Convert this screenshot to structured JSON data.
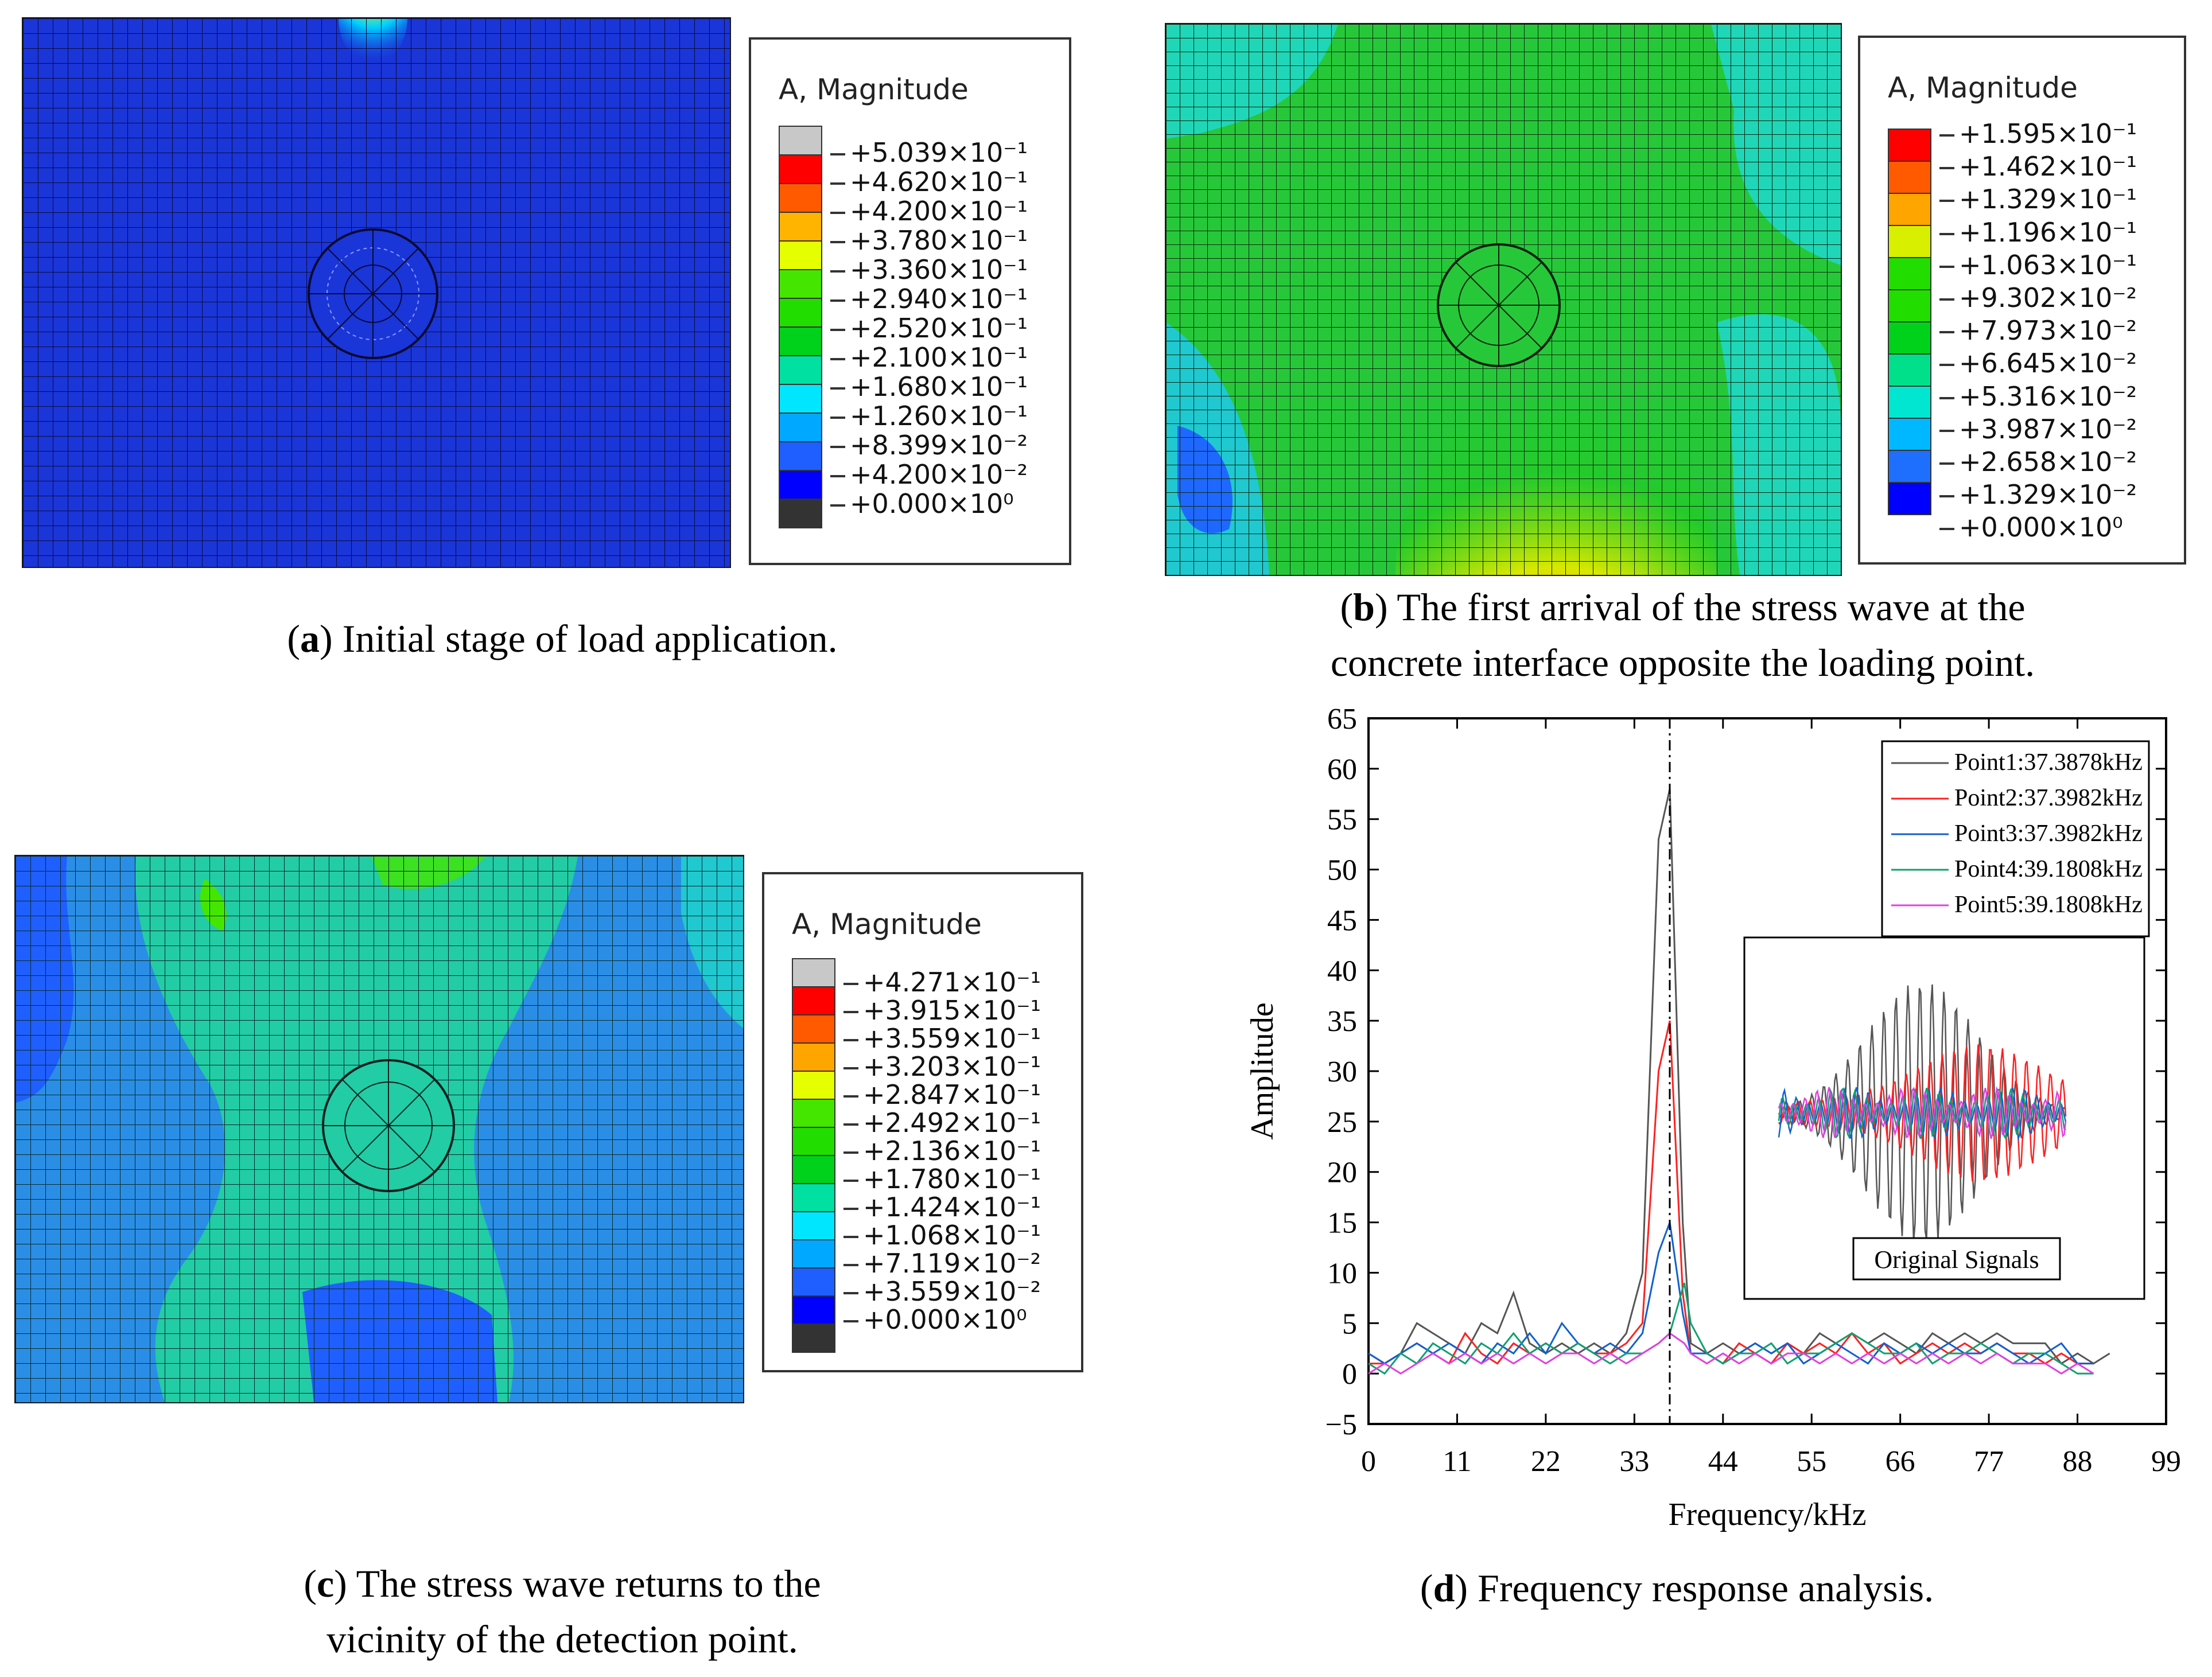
{
  "panels": {
    "a": {
      "legend_title": "A, Magnitude",
      "legend_values": [
        "+5.039×10⁻¹",
        "+4.620×10⁻¹",
        "+4.200×10⁻¹",
        "+3.780×10⁻¹",
        "+3.360×10⁻¹",
        "+2.940×10⁻¹",
        "+2.520×10⁻¹",
        "+2.100×10⁻¹",
        "+1.680×10⁻¹",
        "+1.260×10⁻¹",
        "+8.399×10⁻²",
        "+4.200×10⁻²",
        "+0.000×10⁰"
      ],
      "legend_colors": [
        "#c8c8c8",
        "#ff0000",
        "#ff5a00",
        "#ffb400",
        "#e6ff00",
        "#44e600",
        "#22dd00",
        "#00d11a",
        "#00e0a0",
        "#00e6ff",
        "#00a8ff",
        "#1f5fff",
        "#0000ff",
        "#333333"
      ],
      "caption_letter": "a",
      "caption_text": ") Initial stage of load application."
    },
    "b": {
      "legend_title": "A, Magnitude",
      "legend_values": [
        "+1.595×10⁻¹",
        "+1.462×10⁻¹",
        "+1.329×10⁻¹",
        "+1.196×10⁻¹",
        "+1.063×10⁻¹",
        "+9.302×10⁻²",
        "+7.973×10⁻²",
        "+6.645×10⁻²",
        "+5.316×10⁻²",
        "+3.987×10⁻²",
        "+2.658×10⁻²",
        "+1.329×10⁻²",
        "+0.000×10⁰"
      ],
      "legend_colors": [
        "#ff0000",
        "#ff5a00",
        "#ffa500",
        "#d8f000",
        "#22dd00",
        "#22dd00",
        "#00d11a",
        "#00e08a",
        "#00e6d0",
        "#00b8ff",
        "#1f6fff",
        "#0000ff"
      ],
      "caption_letter": "b",
      "caption_line1": ") The first arrival of the stress wave at the",
      "caption_line2": "concrete interface opposite the loading point."
    },
    "c": {
      "legend_title": "A, Magnitude",
      "legend_values": [
        "+4.271×10⁻¹",
        "+3.915×10⁻¹",
        "+3.559×10⁻¹",
        "+3.203×10⁻¹",
        "+2.847×10⁻¹",
        "+2.492×10⁻¹",
        "+2.136×10⁻¹",
        "+1.780×10⁻¹",
        "+1.424×10⁻¹",
        "+1.068×10⁻¹",
        "+7.119×10⁻²",
        "+3.559×10⁻²",
        "+0.000×10⁰"
      ],
      "legend_colors": [
        "#c8c8c8",
        "#ff0000",
        "#ff5a00",
        "#ffa500",
        "#e6ff00",
        "#44e600",
        "#22dd00",
        "#00d11a",
        "#00e0a0",
        "#00e6ff",
        "#00a8ff",
        "#1f5fff",
        "#0000ff",
        "#333333"
      ],
      "caption_letter": "c",
      "caption_line1": ") The stress wave returns to the",
      "caption_line2": "vicinity of the detection point."
    },
    "d": {
      "caption_letter": "d",
      "caption_text": ") Frequency response analysis."
    }
  },
  "colors": {
    "mesh_a": "#1a35d8",
    "mesh_b": "#22cc22",
    "mesh_c": "#22ccaa"
  },
  "chart_data": {
    "type": "line",
    "title": "",
    "xlabel": "Frequency/kHz",
    "ylabel": "Amplitude",
    "xlim": [
      0,
      99
    ],
    "ylim": [
      -5,
      65
    ],
    "xticks": [
      0,
      11,
      22,
      33,
      44,
      55,
      66,
      77,
      88,
      99
    ],
    "yticks": [
      -5,
      0,
      5,
      10,
      15,
      20,
      25,
      30,
      35,
      40,
      45,
      50,
      55,
      60,
      65
    ],
    "vline_x": 37.39,
    "inset_label": "Original Signals",
    "series": [
      {
        "name": "Point1:37.3878kHz",
        "color": "#555555",
        "x": [
          0,
          2,
          4,
          6,
          8,
          10,
          12,
          14,
          16,
          18,
          20,
          22,
          24,
          26,
          28,
          30,
          32,
          34,
          36,
          37.4,
          39,
          40,
          42,
          44,
          46,
          48,
          50,
          52,
          54,
          56,
          58,
          60,
          62,
          64,
          66,
          68,
          70,
          72,
          74,
          76,
          78,
          80,
          82,
          84,
          86,
          88,
          90,
          92
        ],
        "y": [
          2,
          1,
          2,
          5,
          4,
          3,
          2,
          5,
          4,
          8,
          3,
          2,
          3,
          2,
          3,
          2,
          4,
          10,
          53,
          58,
          15,
          3,
          2,
          3,
          2,
          3,
          2,
          3,
          2,
          4,
          3,
          4,
          3,
          4,
          3,
          2,
          4,
          3,
          4,
          3,
          4,
          3,
          3,
          3,
          1,
          2,
          1,
          2
        ]
      },
      {
        "name": "Point2:37.3982kHz",
        "color": "#ff2020",
        "x": [
          0,
          2,
          4,
          6,
          8,
          10,
          12,
          14,
          16,
          18,
          20,
          22,
          24,
          26,
          28,
          30,
          32,
          34,
          36,
          37.4,
          39,
          40,
          42,
          44,
          46,
          48,
          50,
          52,
          54,
          56,
          58,
          60,
          62,
          64,
          66,
          68,
          70,
          72,
          74,
          76,
          78,
          80,
          82,
          84,
          86,
          88,
          90
        ],
        "y": [
          1,
          1,
          2,
          3,
          2,
          1,
          4,
          2,
          1,
          3,
          2,
          3,
          2,
          3,
          2,
          2,
          3,
          5,
          30,
          35,
          8,
          2,
          2,
          1,
          3,
          2,
          1,
          3,
          2,
          3,
          2,
          4,
          2,
          3,
          1,
          2,
          3,
          2,
          3,
          2,
          3,
          2,
          2,
          1,
          2,
          1,
          1
        ]
      },
      {
        "name": "Point3:37.3982kHz",
        "color": "#1060d0",
        "x": [
          0,
          2,
          4,
          6,
          8,
          10,
          12,
          14,
          16,
          18,
          20,
          22,
          24,
          26,
          28,
          30,
          32,
          34,
          36,
          37.4,
          39,
          40,
          42,
          44,
          46,
          48,
          50,
          52,
          54,
          56,
          58,
          60,
          62,
          64,
          66,
          68,
          70,
          72,
          74,
          76,
          78,
          80,
          82,
          84,
          86,
          88,
          90
        ],
        "y": [
          2,
          1,
          2,
          3,
          2,
          3,
          2,
          1,
          3,
          2,
          4,
          2,
          5,
          3,
          2,
          3,
          2,
          4,
          12,
          15,
          6,
          2,
          2,
          1,
          2,
          3,
          2,
          3,
          1,
          2,
          3,
          2,
          1,
          3,
          2,
          3,
          2,
          3,
          2,
          2,
          3,
          2,
          1,
          2,
          3,
          1,
          1
        ]
      },
      {
        "name": "Point4:39.1808kHz",
        "color": "#10a070",
        "x": [
          0,
          2,
          4,
          6,
          8,
          10,
          12,
          14,
          16,
          18,
          20,
          22,
          24,
          26,
          28,
          30,
          32,
          34,
          36,
          37.4,
          39.2,
          40,
          42,
          44,
          46,
          48,
          50,
          52,
          54,
          56,
          58,
          60,
          62,
          64,
          66,
          68,
          70,
          72,
          74,
          76,
          78,
          80,
          82,
          84,
          86,
          88,
          90
        ],
        "y": [
          1,
          0,
          2,
          1,
          3,
          2,
          1,
          3,
          2,
          4,
          2,
          3,
          2,
          3,
          2,
          1,
          2,
          2,
          3,
          4,
          9,
          5,
          2,
          1,
          2,
          2,
          3,
          1,
          2,
          2,
          3,
          4,
          3,
          2,
          2,
          3,
          1,
          2,
          2,
          3,
          2,
          1,
          2,
          2,
          1,
          0,
          0
        ]
      },
      {
        "name": "Point5:39.1808kHz",
        "color": "#e040e0",
        "x": [
          0,
          2,
          4,
          6,
          8,
          10,
          12,
          14,
          16,
          18,
          20,
          22,
          24,
          26,
          28,
          30,
          32,
          34,
          36,
          37.4,
          39.2,
          40,
          42,
          44,
          46,
          48,
          50,
          52,
          54,
          56,
          58,
          60,
          62,
          64,
          66,
          68,
          70,
          72,
          74,
          76,
          78,
          80,
          82,
          84,
          86,
          88,
          90
        ],
        "y": [
          0,
          1,
          0,
          1,
          2,
          1,
          2,
          1,
          2,
          1,
          2,
          1,
          2,
          2,
          1,
          2,
          1,
          2,
          3,
          4,
          3,
          2,
          1,
          2,
          1,
          2,
          1,
          2,
          2,
          1,
          2,
          1,
          2,
          1,
          2,
          1,
          2,
          1,
          2,
          1,
          2,
          1,
          1,
          1,
          0,
          1,
          0
        ]
      }
    ]
  }
}
